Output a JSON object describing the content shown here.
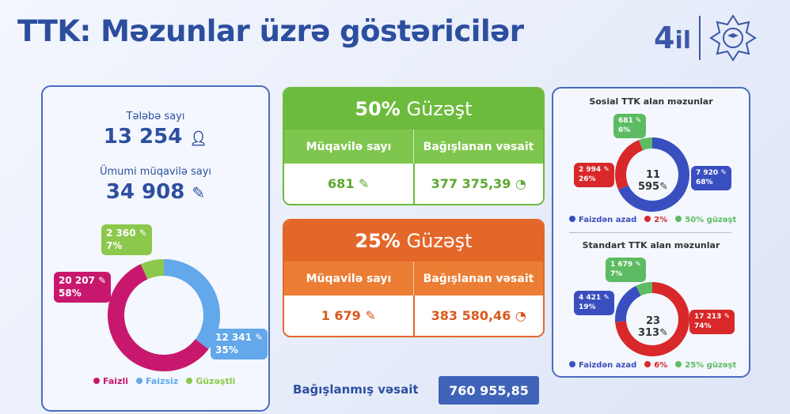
{
  "title": "TTK: Məzunlar üzrə göstəricilər",
  "logo": {
    "text": "4 il",
    "emblem": "university-emblem"
  },
  "left": {
    "students_label": "Tələbə sayı",
    "students_value": "13 254",
    "contracts_label": "Ümumi müqavilə sayı",
    "contracts_value": "34 908",
    "chart_data": {
      "type": "pie",
      "donut": true,
      "series": [
        {
          "name": "Faizsiz",
          "value": 12341,
          "label": "12 341",
          "percent": "35%",
          "color": "#62a8ea"
        },
        {
          "name": "Faizli",
          "value": 20207,
          "label": "20 207",
          "percent": "58%",
          "color": "#c8186e"
        },
        {
          "name": "Güzəştli",
          "value": 2360,
          "label": "2 360",
          "percent": "7%",
          "color": "#8cc84b"
        }
      ]
    },
    "legend": [
      "Faizli",
      "Faizsiz",
      "Güzəştli"
    ]
  },
  "discount50": {
    "title_pct": "50%",
    "title_word": "Güzəşt",
    "col1": "Müqavilə sayı",
    "col2": "Bağışlanan vəsait",
    "val1": "681",
    "val2": "377 375,39",
    "color": "#6dbb3c"
  },
  "discount25": {
    "title_pct": "25%",
    "title_word": "Güzəşt",
    "col1": "Müqavilə sayı",
    "col2": "Bağışlanan vəsait",
    "val1": "1 679",
    "val2": "383 580,46",
    "color": "#e4672a"
  },
  "total": {
    "label": "Bağışlanmış vəsait",
    "value": "760 955,85"
  },
  "social": {
    "title": "Sosial TTK alan məzunlar",
    "total": "11 595",
    "chart_data": {
      "type": "pie",
      "donut": true,
      "series": [
        {
          "name": "Faizdən azad",
          "value": 7920,
          "label": "7 920",
          "percent": "68%",
          "color": "#3a4fbf"
        },
        {
          "name": "2%",
          "value": 2994,
          "label": "2 994",
          "percent": "26%",
          "color": "#d8282a"
        },
        {
          "name": "50% güzəşt",
          "value": 681,
          "label": "681",
          "percent": "6%",
          "color": "#5dbb63"
        }
      ]
    },
    "legend": [
      "Faizdən azad",
      "2%",
      "50% güzəşt"
    ]
  },
  "standard": {
    "title": "Standart TTK alan məzunlar",
    "total": "23 313",
    "chart_data": {
      "type": "pie",
      "donut": true,
      "series": [
        {
          "name": "6%",
          "value": 17213,
          "label": "17 213",
          "percent": "74%",
          "color": "#d8282a"
        },
        {
          "name": "Faizdən azad",
          "value": 4421,
          "label": "4 421",
          "percent": "19%",
          "color": "#3a4fbf"
        },
        {
          "name": "25% güzəşt",
          "value": 1679,
          "label": "1 679",
          "percent": "7%",
          "color": "#5dbb63"
        }
      ]
    },
    "legend": [
      "Faizdən azad",
      "6%",
      "25% güzəşt"
    ]
  }
}
